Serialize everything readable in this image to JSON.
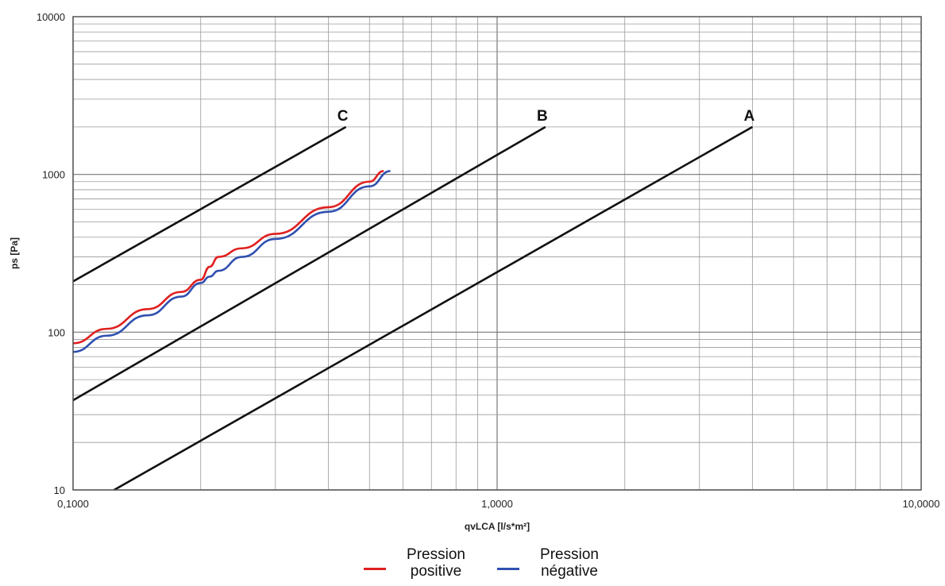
{
  "chart_data": {
    "type": "line",
    "xlabel": "qvLCA [l/s*m²]",
    "ylabel": "ps [Pa]",
    "x_scale": "log",
    "y_scale": "log",
    "xlim": [
      0.1,
      10
    ],
    "ylim": [
      10,
      10000
    ],
    "x_ticks": [
      {
        "value": 0.1,
        "label": "0,1000"
      },
      {
        "value": 1,
        "label": "1,0000"
      },
      {
        "value": 10,
        "label": "10,0000"
      }
    ],
    "y_ticks": [
      {
        "value": 10,
        "label": "10"
      },
      {
        "value": 100,
        "label": "100"
      },
      {
        "value": 1000,
        "label": "1000"
      },
      {
        "value": 10000,
        "label": "10000"
      }
    ],
    "grid": true,
    "reference_lines": [
      {
        "label": "C",
        "color": "#111111",
        "points": [
          [
            0.1,
            210
          ],
          [
            0.44,
            2000
          ]
        ]
      },
      {
        "label": "B",
        "color": "#111111",
        "points": [
          [
            0.1,
            37
          ],
          [
            1.3,
            2000
          ]
        ]
      },
      {
        "label": "A",
        "color": "#111111",
        "points": [
          [
            0.125,
            10
          ],
          [
            4.0,
            2000
          ]
        ]
      }
    ],
    "series": [
      {
        "name": "Pression positive",
        "color": "#e02020",
        "x": [
          0.1,
          0.12,
          0.15,
          0.18,
          0.2,
          0.21,
          0.22,
          0.25,
          0.3,
          0.4,
          0.5,
          0.54
        ],
        "y": [
          85,
          105,
          140,
          180,
          215,
          260,
          300,
          340,
          420,
          620,
          900,
          1050
        ]
      },
      {
        "name": "Pression négative",
        "color": "#3050b0",
        "x": [
          0.1,
          0.12,
          0.15,
          0.18,
          0.2,
          0.21,
          0.22,
          0.25,
          0.3,
          0.4,
          0.5,
          0.56
        ],
        "y": [
          75,
          95,
          128,
          168,
          205,
          225,
          245,
          300,
          390,
          580,
          840,
          1050
        ]
      }
    ]
  }
}
